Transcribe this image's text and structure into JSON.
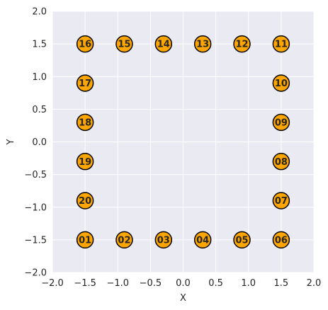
{
  "chart_data": {
    "type": "scatter",
    "title": "",
    "xlabel": "X",
    "ylabel": "Y",
    "xlim": [
      -2.0,
      2.0
    ],
    "ylim": [
      -2.0,
      2.0
    ],
    "xticks": [
      "−2.0",
      "−1.5",
      "−1.0",
      "−0.5",
      "0.0",
      "0.5",
      "1.0",
      "1.5",
      "2.0"
    ],
    "yticks": [
      "−2.0",
      "−1.5",
      "−1.0",
      "−0.5",
      "0.0",
      "0.5",
      "1.0",
      "1.5",
      "2.0"
    ],
    "grid": true,
    "marker_color": "#ffa500",
    "marker_edge_color": "#000000",
    "background_color": "#eaeaf2",
    "points": [
      {
        "label": "01",
        "x": -1.5,
        "y": -1.5
      },
      {
        "label": "02",
        "x": -0.9,
        "y": -1.5
      },
      {
        "label": "03",
        "x": -0.3,
        "y": -1.5
      },
      {
        "label": "04",
        "x": 0.3,
        "y": -1.5
      },
      {
        "label": "05",
        "x": 0.9,
        "y": -1.5
      },
      {
        "label": "06",
        "x": 1.5,
        "y": -1.5
      },
      {
        "label": "07",
        "x": 1.5,
        "y": -0.9
      },
      {
        "label": "08",
        "x": 1.5,
        "y": -0.3
      },
      {
        "label": "09",
        "x": 1.5,
        "y": 0.3
      },
      {
        "label": "10",
        "x": 1.5,
        "y": 0.9
      },
      {
        "label": "11",
        "x": 1.5,
        "y": 1.5
      },
      {
        "label": "12",
        "x": 0.9,
        "y": 1.5
      },
      {
        "label": "13",
        "x": 0.3,
        "y": 1.5
      },
      {
        "label": "14",
        "x": -0.3,
        "y": 1.5
      },
      {
        "label": "15",
        "x": -0.9,
        "y": 1.5
      },
      {
        "label": "16",
        "x": -1.5,
        "y": 1.5
      },
      {
        "label": "17",
        "x": -1.5,
        "y": 0.9
      },
      {
        "label": "18",
        "x": -1.5,
        "y": 0.3
      },
      {
        "label": "19",
        "x": -1.5,
        "y": -0.3
      },
      {
        "label": "20",
        "x": -1.5,
        "y": -0.9
      }
    ]
  }
}
